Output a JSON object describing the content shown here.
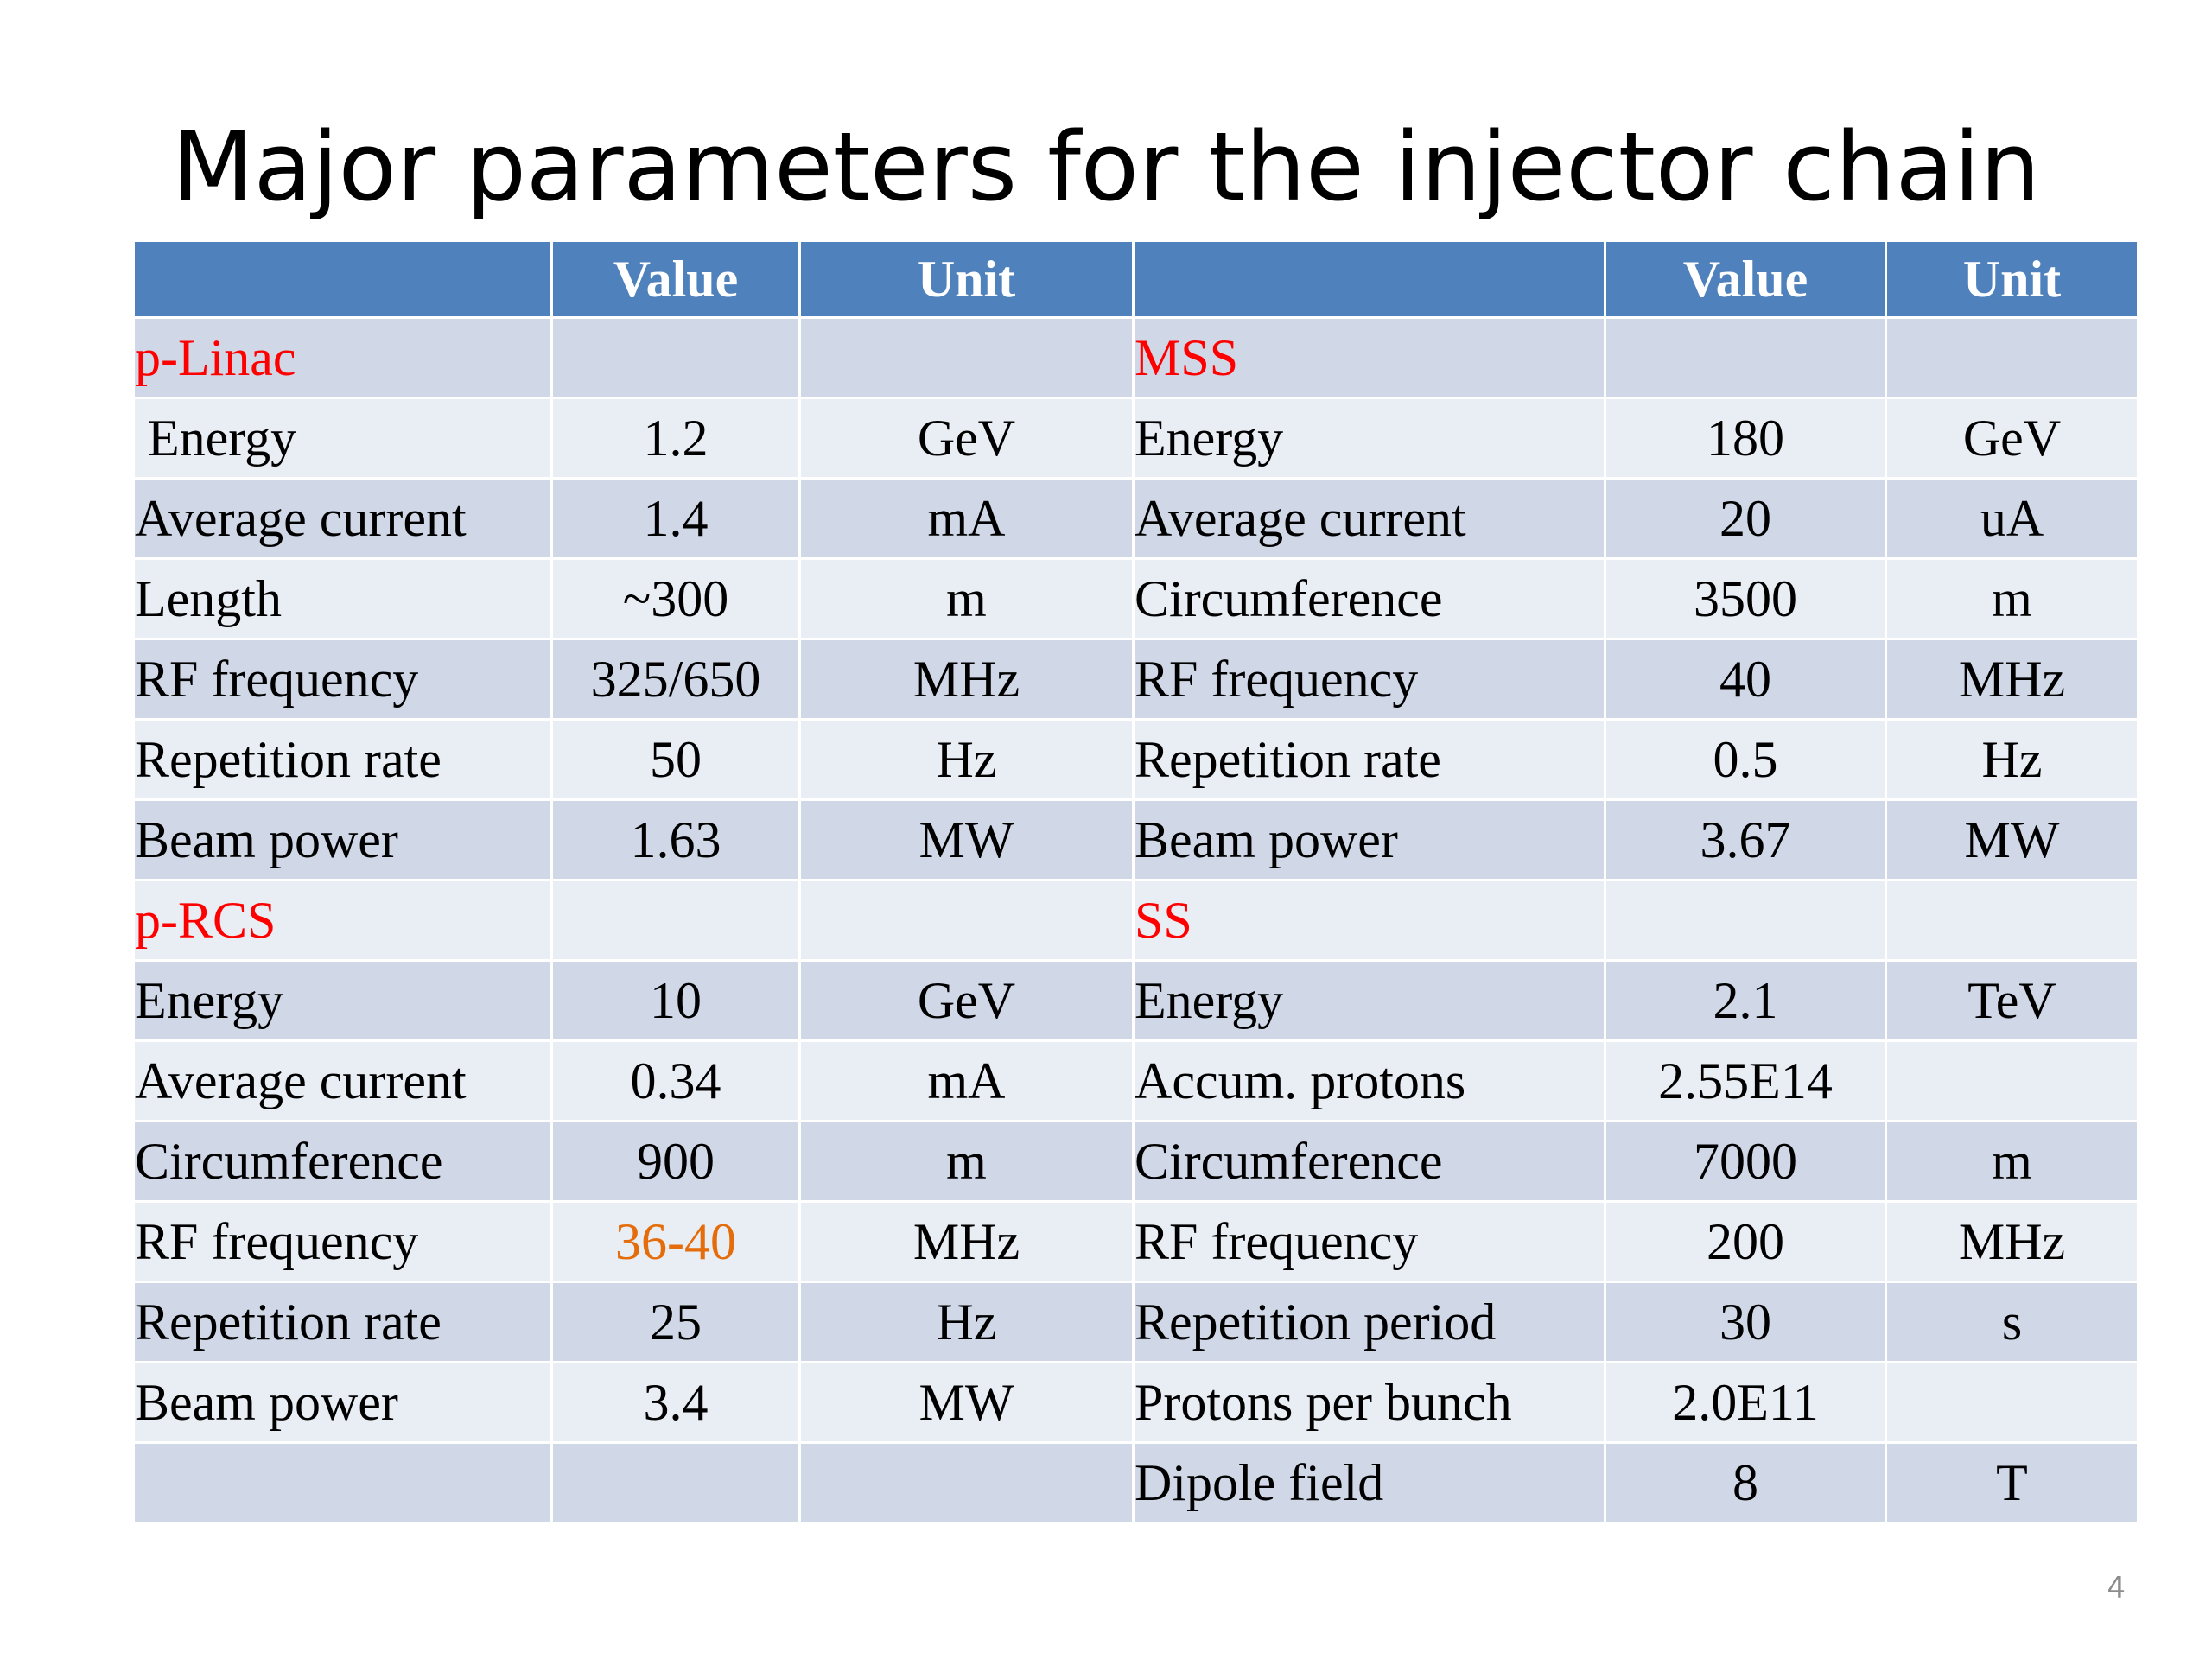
{
  "title": "Major parameters for the injector chain",
  "header": {
    "col1": "",
    "col2": "Value",
    "col3": "Unit",
    "col4": "",
    "col5": "Value",
    "col6": "Unit"
  },
  "rows": [
    {
      "l_label": "p-Linac",
      "l_value": "",
      "l_unit": "",
      "r_label": "MSS",
      "r_value": "",
      "r_unit": ""
    },
    {
      "l_label": " Energy",
      "l_value": "1.2",
      "l_unit": "GeV",
      "r_label": "Energy",
      "r_value": "180",
      "r_unit": "GeV"
    },
    {
      "l_label": "Average current",
      "l_value": "1.4",
      "l_unit": "mA",
      "r_label": "Average current",
      "r_value": "20",
      "r_unit": "uA"
    },
    {
      "l_label": "Length",
      "l_value": "~300",
      "l_unit": "m",
      "r_label": "Circumference",
      "r_value": "3500",
      "r_unit": "m"
    },
    {
      "l_label": "RF frequency",
      "l_value": "325/650",
      "l_unit": "MHz",
      "r_label": "RF frequency",
      "r_value": "40",
      "r_unit": "MHz"
    },
    {
      "l_label": "Repetition rate",
      "l_value": "50",
      "l_unit": "Hz",
      "r_label": "Repetition rate",
      "r_value": "0.5",
      "r_unit": "Hz"
    },
    {
      "l_label": "Beam power",
      "l_value": "1.63",
      "l_unit": "MW",
      "r_label": "Beam power",
      "r_value": "3.67",
      "r_unit": "MW"
    },
    {
      "l_label": "p-RCS",
      "l_value": "",
      "l_unit": "",
      "r_label": "SS",
      "r_value": "",
      "r_unit": ""
    },
    {
      "l_label": "Energy",
      "l_value": "10",
      "l_unit": "GeV",
      "r_label": "Energy",
      "r_value": "2.1",
      "r_unit": "TeV"
    },
    {
      "l_label": "Average current",
      "l_value": "0.34",
      "l_unit": "mA",
      "r_label": "Accum. protons",
      "r_value": "2.55E14",
      "r_unit": ""
    },
    {
      "l_label": "Circumference",
      "l_value": "900",
      "l_unit": "m",
      "r_label": "Circumference",
      "r_value": "7000",
      "r_unit": "m"
    },
    {
      "l_label": "RF frequency",
      "l_value": "36-40",
      "l_unit": "MHz",
      "r_label": "RF frequency",
      "r_value": "200",
      "r_unit": "MHz"
    },
    {
      "l_label": "Repetition rate",
      "l_value": "25",
      "l_unit": "Hz",
      "r_label": "Repetition period",
      "r_value": "30",
      "r_unit": "s"
    },
    {
      "l_label": "Beam power",
      "l_value": "3.4",
      "l_unit": "MW",
      "r_label": "Protons per bunch",
      "r_value": "2.0E11",
      "r_unit": ""
    },
    {
      "l_label": "",
      "l_value": "",
      "l_unit": "",
      "r_label": "Dipole field",
      "r_value": "8",
      "r_unit": "T"
    }
  ],
  "colors": {
    "header_bg": "#4f81bd",
    "band_dark": "#d0d8e8",
    "band_light": "#e9edf4",
    "section_label": "#ff0000",
    "highlight_value": "#e46c0a"
  },
  "page_number": "4"
}
